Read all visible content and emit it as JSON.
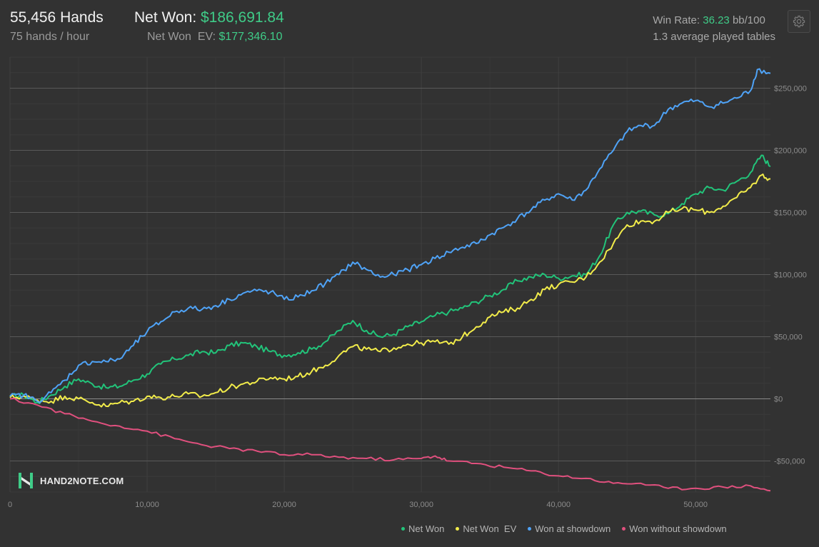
{
  "header": {
    "hands": "55,456 Hands",
    "hands_per_hour": "75 hands / hour",
    "net_won_label": "Net Won: ",
    "net_won_value": "$186,691.84",
    "net_won_ev_label": "Net Won  EV: ",
    "net_won_ev_value": "$177,346.10",
    "win_rate_label": "Win Rate: ",
    "win_rate_value": "36.23",
    "win_rate_unit": " bb/100",
    "tables": "1.3 average played tables"
  },
  "icons": {
    "settings": "gear-icon",
    "logo": "hand2note-logo"
  },
  "logo_text": "HAND2NOTE.COM",
  "colors": {
    "background": "#323232",
    "net_won": "#22c47a",
    "net_won_ev": "#f2ec4a",
    "showdown": "#4fa3f7",
    "no_showdown": "#e0507e",
    "accent": "#3fcc88"
  },
  "chart_data": {
    "type": "line",
    "xlabel": "",
    "ylabel": "",
    "xlim": [
      0,
      55456
    ],
    "ylim": [
      -75000,
      275000
    ],
    "x_ticks": [
      0,
      10000,
      20000,
      30000,
      40000,
      50000
    ],
    "x_tick_labels": [
      "0",
      "10,000",
      "20,000",
      "30,000",
      "40,000",
      "50,000"
    ],
    "y_ticks": [
      250000,
      200000,
      150000,
      100000,
      50000,
      0,
      -50000
    ],
    "y_tick_labels": [
      "$250,000",
      "$200,000",
      "$150,000",
      "$100,000",
      "$50,000",
      "$0",
      "-$50,000"
    ],
    "grid": true,
    "legend_position": "bottom-right",
    "series": [
      {
        "name": "Net Won",
        "color": "#22c47a",
        "points": [
          [
            0,
            2000
          ],
          [
            1000,
            3000
          ],
          [
            2000,
            -3000
          ],
          [
            3000,
            3000
          ],
          [
            4000,
            10000
          ],
          [
            5000,
            16000
          ],
          [
            6000,
            12000
          ],
          [
            7000,
            9000
          ],
          [
            8000,
            10000
          ],
          [
            9000,
            15000
          ],
          [
            10000,
            20000
          ],
          [
            11000,
            28000
          ],
          [
            12000,
            32000
          ],
          [
            13000,
            35000
          ],
          [
            14000,
            38000
          ],
          [
            15000,
            37000
          ],
          [
            16000,
            43000
          ],
          [
            17000,
            45000
          ],
          [
            18000,
            42000
          ],
          [
            19000,
            38000
          ],
          [
            20000,
            35000
          ],
          [
            21000,
            37000
          ],
          [
            22000,
            40000
          ],
          [
            23000,
            46000
          ],
          [
            24000,
            55000
          ],
          [
            25000,
            63000
          ],
          [
            26000,
            55000
          ],
          [
            27000,
            50000
          ],
          [
            28000,
            52000
          ],
          [
            29000,
            58000
          ],
          [
            30000,
            62000
          ],
          [
            31000,
            67000
          ],
          [
            32000,
            70000
          ],
          [
            33000,
            73000
          ],
          [
            34000,
            78000
          ],
          [
            35000,
            83000
          ],
          [
            36000,
            88000
          ],
          [
            37000,
            95000
          ],
          [
            38000,
            98000
          ],
          [
            39000,
            100000
          ],
          [
            40000,
            97000
          ],
          [
            41000,
            99000
          ],
          [
            42000,
            100000
          ],
          [
            43000,
            115000
          ],
          [
            44000,
            140000
          ],
          [
            45000,
            150000
          ],
          [
            46000,
            151000
          ],
          [
            47000,
            148000
          ],
          [
            48000,
            149000
          ],
          [
            49000,
            157000
          ],
          [
            50000,
            165000
          ],
          [
            51000,
            170000
          ],
          [
            52000,
            168000
          ],
          [
            53000,
            175000
          ],
          [
            54000,
            182000
          ],
          [
            54800,
            196000
          ],
          [
            55456,
            187000
          ]
        ]
      },
      {
        "name": "Net Won  EV",
        "color": "#f2ec4a",
        "points": [
          [
            0,
            1000
          ],
          [
            1000,
            2000
          ],
          [
            2000,
            -1000
          ],
          [
            3000,
            -2000
          ],
          [
            4000,
            2000
          ],
          [
            5000,
            0
          ],
          [
            6000,
            -3000
          ],
          [
            7000,
            -6000
          ],
          [
            8000,
            -3000
          ],
          [
            9000,
            -2000
          ],
          [
            10000,
            2000
          ],
          [
            11000,
            1000
          ],
          [
            12000,
            2000
          ],
          [
            13000,
            4000
          ],
          [
            14000,
            2000
          ],
          [
            15000,
            5000
          ],
          [
            16000,
            9000
          ],
          [
            17000,
            12000
          ],
          [
            18000,
            14000
          ],
          [
            19000,
            17000
          ],
          [
            20000,
            16000
          ],
          [
            21000,
            18000
          ],
          [
            22000,
            22000
          ],
          [
            23000,
            27000
          ],
          [
            24000,
            35000
          ],
          [
            25000,
            42000
          ],
          [
            26000,
            40000
          ],
          [
            27000,
            38000
          ],
          [
            28000,
            41000
          ],
          [
            29000,
            44000
          ],
          [
            30000,
            45000
          ],
          [
            31000,
            46000
          ],
          [
            32000,
            44000
          ],
          [
            33000,
            50000
          ],
          [
            34000,
            58000
          ],
          [
            35000,
            66000
          ],
          [
            36000,
            70000
          ],
          [
            37000,
            73000
          ],
          [
            38000,
            80000
          ],
          [
            39000,
            88000
          ],
          [
            40000,
            92000
          ],
          [
            41000,
            94000
          ],
          [
            42000,
            98000
          ],
          [
            43000,
            110000
          ],
          [
            44000,
            125000
          ],
          [
            45000,
            140000
          ],
          [
            46000,
            143000
          ],
          [
            47000,
            143000
          ],
          [
            48000,
            150000
          ],
          [
            49000,
            153000
          ],
          [
            50000,
            152000
          ],
          [
            51000,
            150000
          ],
          [
            52000,
            155000
          ],
          [
            53000,
            162000
          ],
          [
            54000,
            170000
          ],
          [
            54800,
            180000
          ],
          [
            55456,
            177000
          ]
        ]
      },
      {
        "name": "Won at showdown",
        "color": "#4fa3f7",
        "points": [
          [
            0,
            2000
          ],
          [
            1000,
            3000
          ],
          [
            2000,
            -2000
          ],
          [
            3000,
            5000
          ],
          [
            4000,
            15000
          ],
          [
            5000,
            27000
          ],
          [
            6000,
            30000
          ],
          [
            7000,
            30000
          ],
          [
            8000,
            32000
          ],
          [
            9000,
            43000
          ],
          [
            10000,
            54000
          ],
          [
            11000,
            62000
          ],
          [
            12000,
            70000
          ],
          [
            13000,
            73000
          ],
          [
            14000,
            72000
          ],
          [
            15000,
            75000
          ],
          [
            16000,
            80000
          ],
          [
            17000,
            85000
          ],
          [
            18000,
            87000
          ],
          [
            19000,
            86000
          ],
          [
            20000,
            80000
          ],
          [
            21000,
            82000
          ],
          [
            22000,
            87000
          ],
          [
            23000,
            93000
          ],
          [
            24000,
            100000
          ],
          [
            25000,
            110000
          ],
          [
            26000,
            104000
          ],
          [
            27000,
            98000
          ],
          [
            28000,
            100000
          ],
          [
            29000,
            104000
          ],
          [
            30000,
            108000
          ],
          [
            31000,
            113000
          ],
          [
            32000,
            118000
          ],
          [
            33000,
            122000
          ],
          [
            34000,
            125000
          ],
          [
            35000,
            132000
          ],
          [
            36000,
            138000
          ],
          [
            37000,
            145000
          ],
          [
            38000,
            152000
          ],
          [
            39000,
            160000
          ],
          [
            40000,
            165000
          ],
          [
            41000,
            160000
          ],
          [
            42000,
            168000
          ],
          [
            43000,
            185000
          ],
          [
            44000,
            200000
          ],
          [
            45000,
            215000
          ],
          [
            46000,
            220000
          ],
          [
            47000,
            220000
          ],
          [
            48000,
            233000
          ],
          [
            49000,
            238000
          ],
          [
            50000,
            240000
          ],
          [
            51000,
            235000
          ],
          [
            52000,
            238000
          ],
          [
            53000,
            242000
          ],
          [
            54000,
            248000
          ],
          [
            54500,
            265000
          ],
          [
            55456,
            262000
          ]
        ]
      },
      {
        "name": "Won without showdown",
        "color": "#e0507e",
        "points": [
          [
            0,
            0
          ],
          [
            2000,
            -5000
          ],
          [
            4000,
            -12000
          ],
          [
            6000,
            -18000
          ],
          [
            8000,
            -22000
          ],
          [
            10000,
            -26000
          ],
          [
            12000,
            -32000
          ],
          [
            14000,
            -37000
          ],
          [
            16000,
            -40000
          ],
          [
            18000,
            -42000
          ],
          [
            20000,
            -45000
          ],
          [
            22000,
            -45000
          ],
          [
            24000,
            -47000
          ],
          [
            26000,
            -48000
          ],
          [
            28000,
            -49000
          ],
          [
            30000,
            -48000
          ],
          [
            31000,
            -46000
          ],
          [
            32000,
            -50000
          ],
          [
            34000,
            -52000
          ],
          [
            36000,
            -55000
          ],
          [
            38000,
            -58000
          ],
          [
            40000,
            -62000
          ],
          [
            42000,
            -64000
          ],
          [
            44000,
            -68000
          ],
          [
            46000,
            -68000
          ],
          [
            48000,
            -72000
          ],
          [
            50000,
            -72000
          ],
          [
            52000,
            -71000
          ],
          [
            54000,
            -70000
          ],
          [
            55456,
            -74000
          ]
        ]
      }
    ]
  }
}
